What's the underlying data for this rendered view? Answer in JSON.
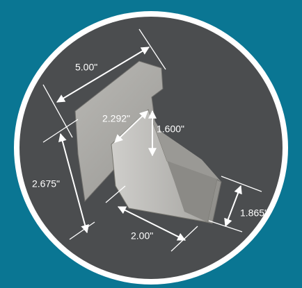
{
  "dimensions": [
    {
      "label": "5.00\""
    },
    {
      "label": "2.292\""
    },
    {
      "label": "1.600\""
    },
    {
      "label": "2.675\""
    },
    {
      "label": "1.865\""
    },
    {
      "label": "2.00\""
    }
  ]
}
